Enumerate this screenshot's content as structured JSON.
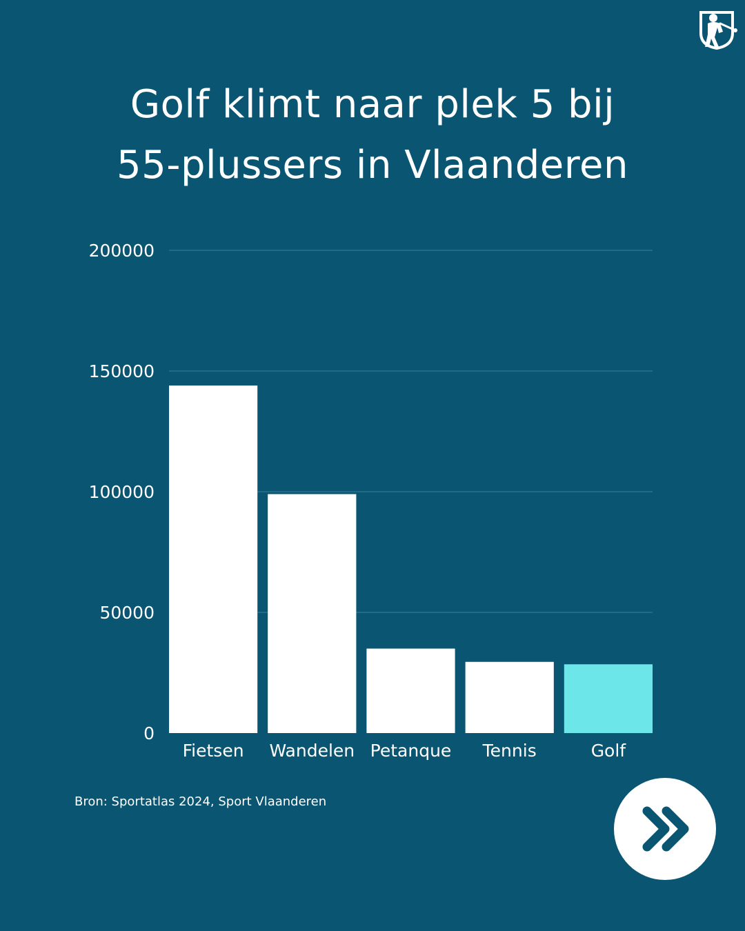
{
  "title_lines": [
    "Golf klimt naar plek 5 bij",
    "55-plussers in Vlaanderen"
  ],
  "source": "Bron: Sportatlas 2024, Sport Vlaanderen",
  "logo_icon": "golfer-logo-icon",
  "next_icon": "double-chevron-right-icon",
  "colors": {
    "background": "#0a5571",
    "bar_default": "#ffffff",
    "bar_highlight": "#6ce6e8",
    "gridline": "#2a7390",
    "arrow": "#0a5571"
  },
  "chart_data": {
    "type": "bar",
    "title": "Golf klimt naar plek 5 bij 55-plussers in Vlaanderen",
    "categories": [
      "Fietsen",
      "Wandelen",
      "Petanque",
      "Tennis",
      "Golf"
    ],
    "values": [
      144000,
      99000,
      35000,
      29500,
      28500
    ],
    "highlight": "Golf",
    "ylim": [
      0,
      200000
    ],
    "yticks": [
      0,
      50000,
      100000,
      150000,
      200000
    ],
    "ytick_labels": [
      "0",
      "50000",
      "100000",
      "150000",
      "200000"
    ],
    "xlabel": "",
    "ylabel": "",
    "grid": true
  }
}
